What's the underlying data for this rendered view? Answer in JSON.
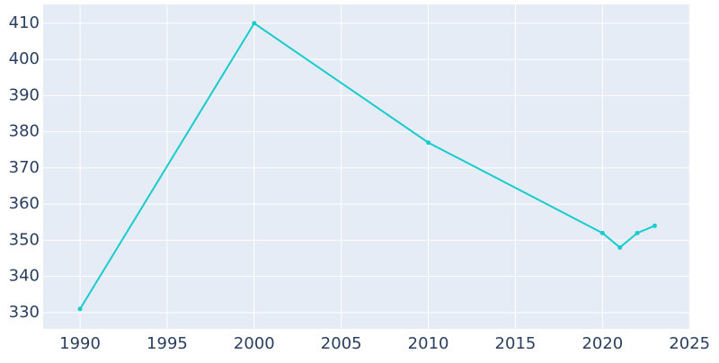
{
  "chart_data": {
    "type": "line",
    "x": [
      1990,
      2000,
      2010,
      2020,
      2021,
      2022,
      2023
    ],
    "series": [
      {
        "color": "#17cccc",
        "values": [
          331,
          410,
          377,
          352,
          348,
          352,
          354
        ]
      }
    ],
    "xlim": [
      1987.88,
      2025.04
    ],
    "xticks": [
      1990,
      1995,
      2000,
      2005,
      2010,
      2015,
      2020,
      2025
    ],
    "ylim": [
      325.5,
      415.2
    ],
    "yticks": [
      330,
      340,
      350,
      360,
      370,
      380,
      390,
      400,
      410
    ],
    "grid": true
  }
}
